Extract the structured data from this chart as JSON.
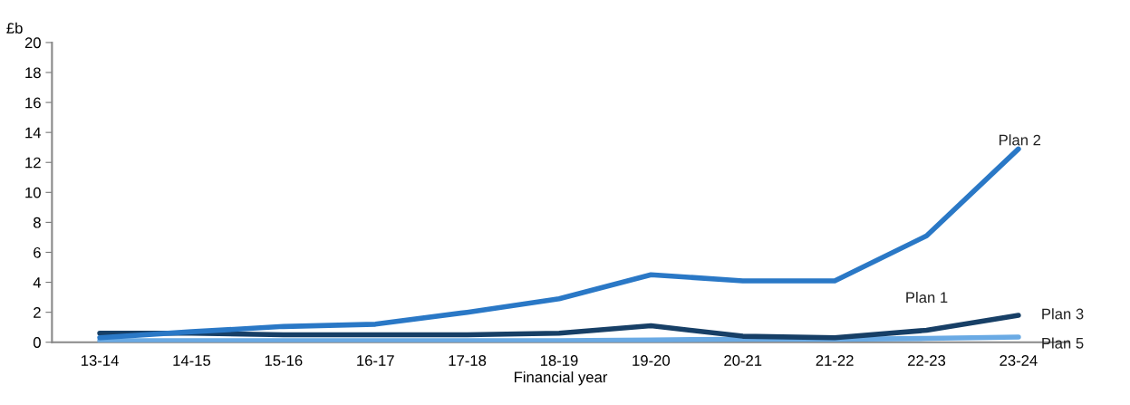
{
  "chart_data": {
    "type": "line",
    "xlabel": "Financial year",
    "ylabel": "£b",
    "categories": [
      "13-14",
      "14-15",
      "15-16",
      "16-17",
      "17-18",
      "18-19",
      "19-20",
      "20-21",
      "21-22",
      "22-23",
      "23-24"
    ],
    "series": [
      {
        "name": "Plan 2",
        "color": "#2a78c6",
        "values": [
          0.3,
          0.7,
          1.05,
          1.2,
          2.0,
          2.9,
          4.5,
          4.1,
          4.1,
          7.1,
          12.9
        ]
      },
      {
        "name": "Plan 3",
        "color": "#173f66",
        "values": [
          0.6,
          0.6,
          0.5,
          0.5,
          0.5,
          0.6,
          1.1,
          0.4,
          0.3,
          0.8,
          1.8
        ]
      },
      {
        "name": "Plan 5",
        "color": "#6aaae4",
        "values": [
          0.1,
          0.1,
          0.1,
          0.1,
          0.1,
          0.1,
          0.15,
          0.2,
          0.2,
          0.25,
          0.35
        ]
      }
    ],
    "annotations": [
      "Plan 1"
    ],
    "ylim": [
      0,
      20
    ],
    "yticks": [
      0,
      2,
      4,
      6,
      8,
      10,
      12,
      14,
      16,
      18,
      20
    ],
    "grid": false,
    "legend": false,
    "marker": "none",
    "line_style": "solid"
  }
}
